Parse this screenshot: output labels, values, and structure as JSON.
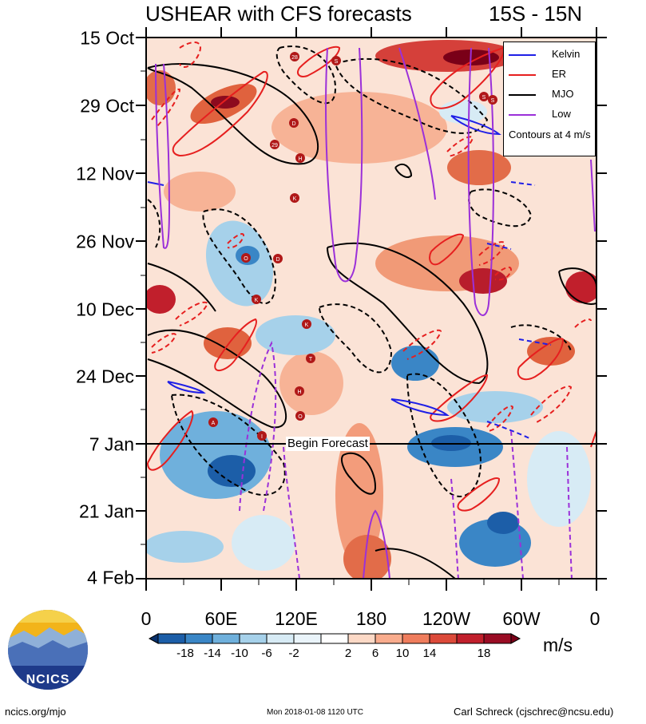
{
  "title": "USHEAR with CFS forecasts",
  "region": "15S - 15N",
  "y_axis": {
    "labels": [
      "15 Oct",
      "29 Oct",
      "12 Nov",
      "26 Nov",
      "10 Dec",
      "24 Dec",
      "7 Jan",
      "21 Jan",
      "4 Feb"
    ]
  },
  "x_axis": {
    "labels": [
      "0",
      "60E",
      "120E",
      "180",
      "120W",
      "60W",
      "0"
    ]
  },
  "forecast_marker": {
    "label": "Begin Forecast",
    "date": "7 Jan"
  },
  "legend": {
    "entries": [
      {
        "label": "Kelvin",
        "color": "#1f1fe6"
      },
      {
        "label": "ER",
        "color": "#e61f1f"
      },
      {
        "label": "MJO",
        "color": "#000000"
      },
      {
        "label": "Low",
        "color": "#9b30d9"
      }
    ],
    "note": "Contours at 4 m/s"
  },
  "colorbar": {
    "labels": [
      "-18",
      "-14",
      "-10",
      "-6",
      "-2",
      "2",
      "6",
      "10",
      "14",
      "18"
    ],
    "colors": [
      "#08306b",
      "#1c5ea8",
      "#3a86c6",
      "#6fb0dc",
      "#a6d1ea",
      "#d7ebf5",
      "#ffffff",
      "#fcd9c6",
      "#f9ac8d",
      "#ef7d5d",
      "#dc4a3a",
      "#c11f2c",
      "#7a0018"
    ],
    "units": "m/s"
  },
  "storm_labels": [
    "28",
    "S",
    "S",
    "S",
    "D",
    "29",
    "H",
    "K",
    "O",
    "D",
    "K",
    "K",
    "T",
    "H",
    "O",
    "A",
    "I"
  ],
  "logo": {
    "text": "NCICS"
  },
  "footer": {
    "left": "ncics.org/mjo",
    "center": "Mon 2018-01-08 1120 UTC",
    "right": "Carl Schreck (cjschrec@ncsu.edu)"
  }
}
